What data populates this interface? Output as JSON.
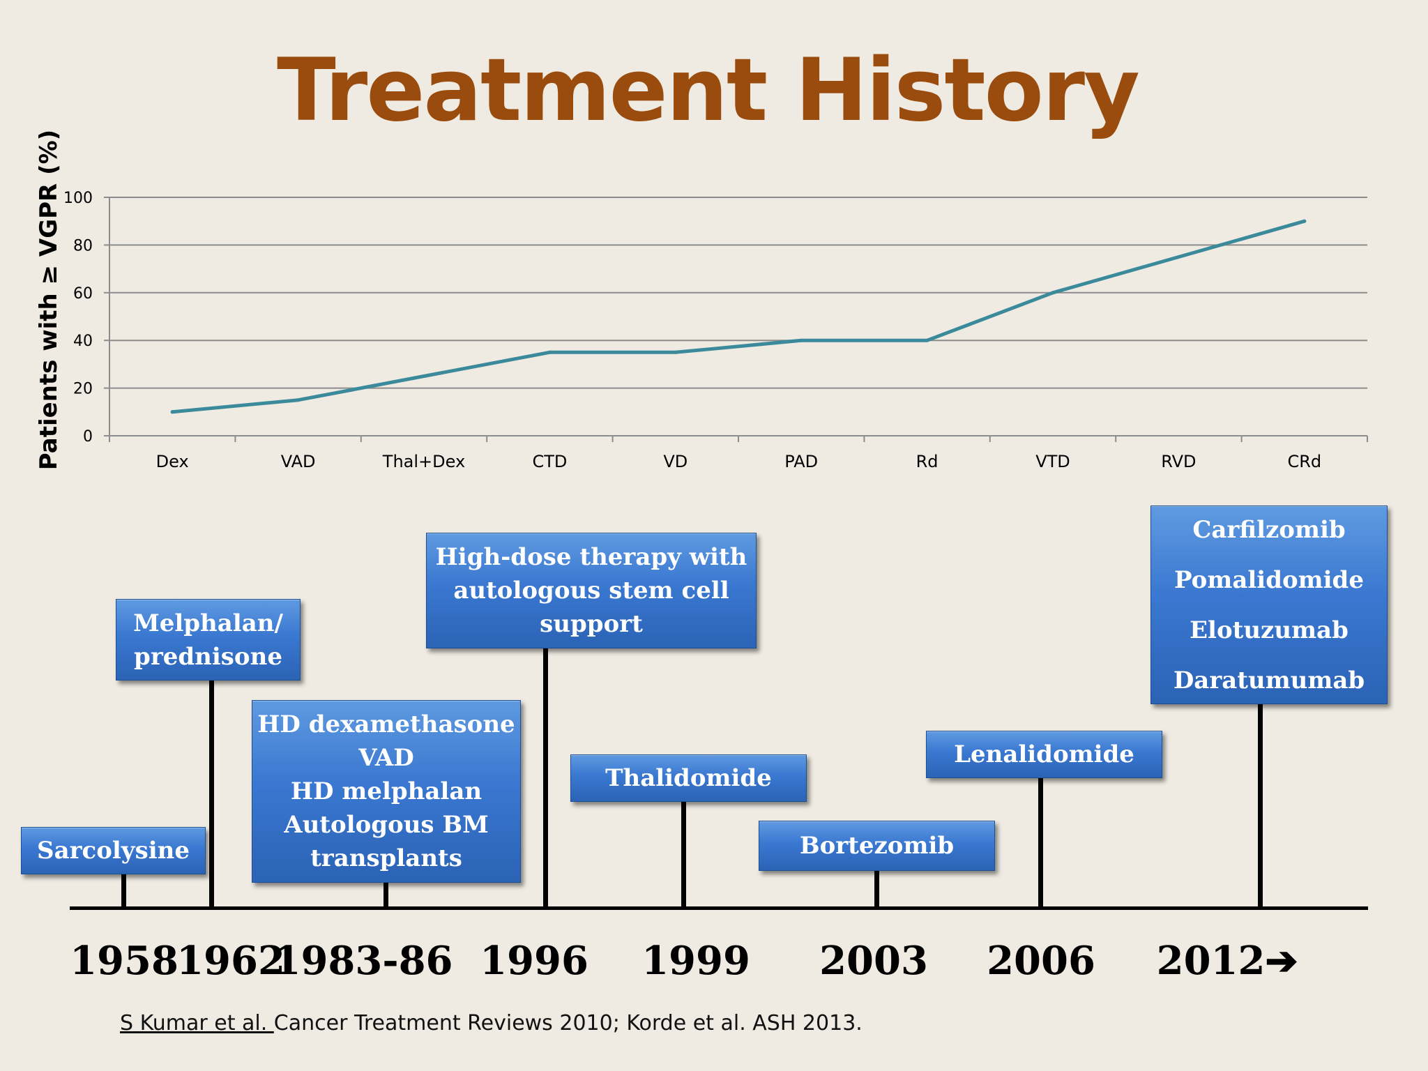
{
  "title": "Treatment History",
  "chart_data": {
    "type": "line",
    "ylabel": "Patients with ≥ VGPR (%)",
    "xlabel": "",
    "ylim": [
      0,
      100
    ],
    "yticks": [
      0,
      20,
      40,
      60,
      80,
      100
    ],
    "grid": true,
    "categories": [
      "Dex",
      "VAD",
      "Thal+Dex",
      "CTD",
      "VD",
      "PAD",
      "Rd",
      "VTD",
      "RVD",
      "CRd"
    ],
    "series": [
      {
        "values": [
          10,
          15,
          25,
          35,
          35,
          40,
          40,
          60,
          75,
          90
        ],
        "color": "#3a8a9c"
      }
    ]
  },
  "timeline": {
    "boxes": [
      {
        "lines": [
          "Sarcolysine"
        ]
      },
      {
        "lines": [
          "Melphalan/",
          "prednisone"
        ]
      },
      {
        "lines": [
          "HD dexamethasone",
          "VAD",
          "HD melphalan",
          "Autologous BM",
          "transplants"
        ]
      },
      {
        "lines": [
          "High-dose therapy with",
          "autologous stem cell",
          "support"
        ]
      },
      {
        "lines": [
          "Thalidomide"
        ]
      },
      {
        "lines": [
          "Bortezomib"
        ]
      },
      {
        "lines": [
          "Lenalidomide"
        ]
      },
      {
        "lines": [
          "Carfilzomib",
          "Pomalidomide",
          "Elotuzumab",
          "Daratumumab"
        ]
      }
    ],
    "years": [
      "1958",
      "1962",
      "1983-86",
      "1996",
      "1999",
      "2003",
      "2006",
      "2012➔"
    ]
  },
  "citation": {
    "authors": "S Kumar et al. ",
    "rest": "Cancer Treatment Reviews 2010; Korde et al. ASH 2013."
  },
  "colors": {
    "title": "#9a4c0e",
    "line": "#3a8a9c",
    "box": "#3a78d1",
    "background": "#efebe3"
  }
}
